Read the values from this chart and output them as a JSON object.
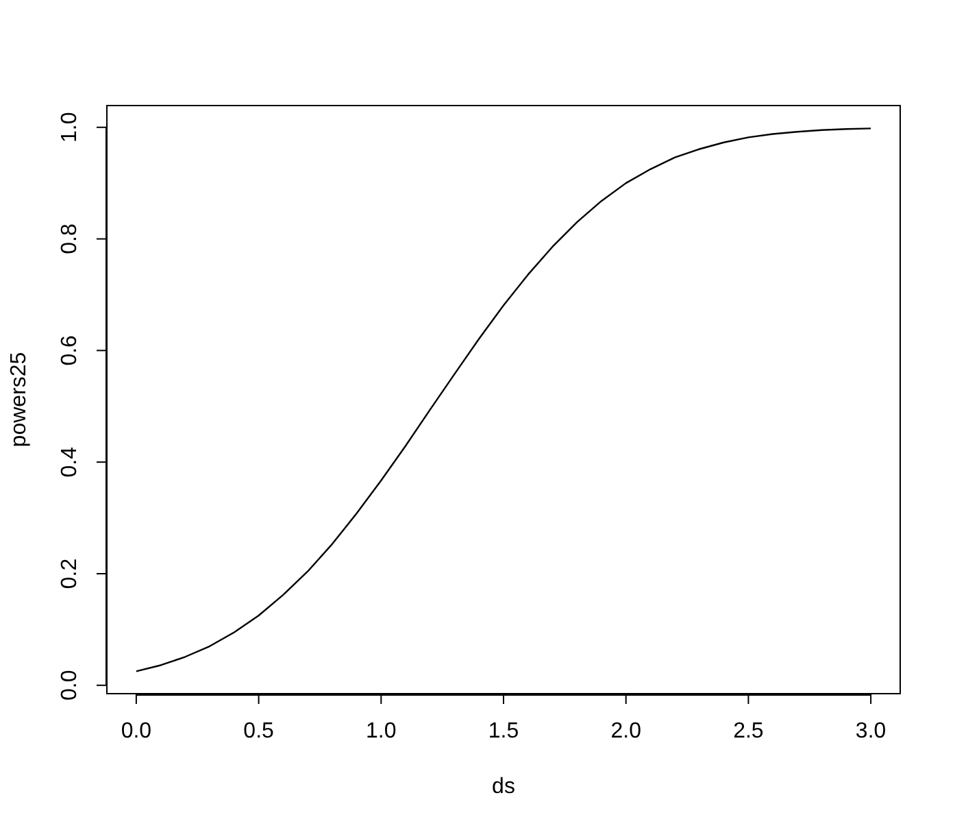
{
  "chart_data": {
    "type": "line",
    "xlabel": "ds",
    "ylabel": "powers25",
    "x": [
      0,
      0.1,
      0.2,
      0.3,
      0.4,
      0.5,
      0.6,
      0.7,
      0.8,
      0.9,
      1,
      1.1,
      1.2,
      1.3,
      1.4,
      1.5,
      1.6,
      1.7,
      1.8,
      1.9,
      2,
      2.1,
      2.2,
      2.3,
      2.4,
      2.5,
      2.6,
      2.7,
      2.8,
      2.9,
      3
    ],
    "series": [
      {
        "color": "#000000",
        "values": [
          0.025,
          0.036,
          0.051,
          0.07,
          0.095,
          0.125,
          0.162,
          0.204,
          0.253,
          0.308,
          0.367,
          0.429,
          0.494,
          0.558,
          0.621,
          0.681,
          0.736,
          0.786,
          0.83,
          0.868,
          0.9,
          0.925,
          0.946,
          0.961,
          0.973,
          0.982,
          0.988,
          0.992,
          0.995,
          0.997,
          0.998
        ]
      }
    ],
    "xlim": [
      -0.12,
      3.12
    ],
    "ylim": [
      -0.015,
      1.039
    ],
    "xticks": [
      {
        "value": 0,
        "label": "0.0"
      },
      {
        "value": 0.5,
        "label": "0.5"
      },
      {
        "value": 1,
        "label": "1.0"
      },
      {
        "value": 1.5,
        "label": "1.5"
      },
      {
        "value": 2,
        "label": "2.0"
      },
      {
        "value": 2.5,
        "label": "2.5"
      },
      {
        "value": 3,
        "label": "3.0"
      }
    ],
    "yticks": [
      {
        "value": 0,
        "label": "0.0"
      },
      {
        "value": 0.2,
        "label": "0.2"
      },
      {
        "value": 0.4,
        "label": "0.4"
      },
      {
        "value": 0.6,
        "label": "0.6"
      },
      {
        "value": 0.8,
        "label": "0.8"
      },
      {
        "value": 1,
        "label": "1.0"
      }
    ],
    "grid": false,
    "legend": false,
    "marker": "none",
    "line_style": "solid"
  }
}
